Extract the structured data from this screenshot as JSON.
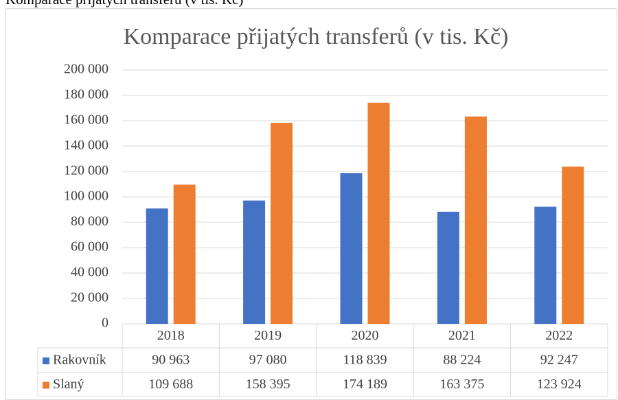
{
  "chart_data": {
    "type": "bar",
    "caption": "Komparace přijatých transferů (v tis. Kč)",
    "title": "Komparace přijatých transferů (v tis. Kč)",
    "categories": [
      "2018",
      "2019",
      "2020",
      "2021",
      "2022"
    ],
    "series": [
      {
        "name": "Rakovník",
        "color": "#4472c4",
        "values": [
          90963,
          97080,
          118839,
          88224,
          92247
        ],
        "value_labels": [
          "90 963",
          "97 080",
          "118 839",
          "88 224",
          "92 247"
        ]
      },
      {
        "name": "Slaný",
        "color": "#ed7d31",
        "values": [
          109688,
          158395,
          174189,
          163375,
          123924
        ],
        "value_labels": [
          "109 688",
          "158 395",
          "174 189",
          "163 375",
          "123 924"
        ]
      }
    ],
    "ylim": [
      0,
      200000
    ],
    "yticks": [
      0,
      {
        "value": 20000,
        "label": "20 000"
      },
      {
        "value": 40000,
        "label": "40 000"
      },
      {
        "value": 60000,
        "label": "60 000"
      },
      {
        "value": 80000,
        "label": "80 000"
      },
      {
        "value": 100000,
        "label": "100 000"
      },
      {
        "value": 120000,
        "label": "120 000"
      },
      {
        "value": 140000,
        "label": "140 000"
      },
      {
        "value": 160000,
        "label": "160 000"
      },
      {
        "value": 180000,
        "label": "180 000"
      },
      {
        "value": 200000,
        "label": "200 000"
      }
    ],
    "grid": true
  }
}
